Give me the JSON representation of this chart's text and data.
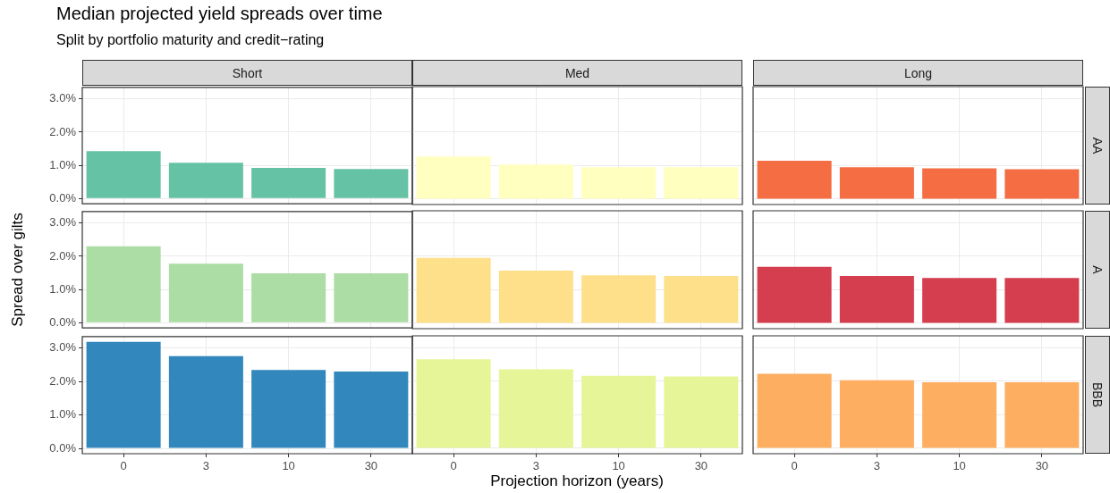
{
  "chart_data": [
    {
      "type": "bar",
      "title": "Median projected yield spreads over time",
      "subtitle": "Split by portfolio maturity and credit−rating",
      "annotations": [
        "Short"
      ],
      "categories": [
        "0",
        "3",
        "10",
        "30"
      ],
      "values": [
        1.43,
        1.08,
        0.92,
        0.89
      ],
      "color": "#66c2a5",
      "ylim": [
        -0.16,
        3.35
      ],
      "yticks": [
        {
          "value": 0,
          "label": "0.0%"
        },
        {
          "value": 1,
          "label": "1.0%"
        },
        {
          "value": 2,
          "label": "2.0%"
        },
        {
          "value": 3,
          "label": "3.0%"
        }
      ],
      "grid": true,
      "tick_labels": "y"
    },
    {
      "type": "bar",
      "annotations": [
        "Med"
      ],
      "categories": [
        "0",
        "3",
        "10",
        "30"
      ],
      "values": [
        1.27,
        1.03,
        0.95,
        0.95
      ],
      "color": "#ffffbf",
      "ylim": [
        -0.16,
        3.35
      ],
      "grid": true,
      "tick_labels": false
    },
    {
      "type": "bar",
      "annotations": [
        "Long",
        "AA"
      ],
      "categories": [
        "0",
        "3",
        "10",
        "30"
      ],
      "values": [
        1.14,
        0.95,
        0.92,
        0.89
      ],
      "color": "#f46d43",
      "ylim": [
        -0.16,
        3.35
      ],
      "grid": true,
      "tick_labels": false
    },
    {
      "type": "bar",
      "ylabel": "Spread over gilts",
      "categories": [
        "0",
        "3",
        "10",
        "30"
      ],
      "values": [
        2.3,
        1.78,
        1.49,
        1.49
      ],
      "color": "#abdda4",
      "ylim": [
        -0.16,
        3.35
      ],
      "yticks": [
        {
          "value": 0,
          "label": "0.0%"
        },
        {
          "value": 1,
          "label": "1.0%"
        },
        {
          "value": 2,
          "label": "2.0%"
        },
        {
          "value": 3,
          "label": "3.0%"
        }
      ],
      "grid": true,
      "tick_labels": "y"
    },
    {
      "type": "bar",
      "categories": [
        "0",
        "3",
        "10",
        "30"
      ],
      "values": [
        1.95,
        1.57,
        1.43,
        1.41
      ],
      "color": "#fee08b",
      "ylim": [
        -0.16,
        3.35
      ],
      "grid": true,
      "tick_labels": false
    },
    {
      "type": "bar",
      "annotations": [
        "A"
      ],
      "categories": [
        "0",
        "3",
        "10",
        "30"
      ],
      "values": [
        1.68,
        1.41,
        1.35,
        1.35
      ],
      "color": "#d53e4f",
      "ylim": [
        -0.16,
        3.35
      ],
      "grid": true,
      "tick_labels": false
    },
    {
      "type": "bar",
      "categories": [
        "0",
        "3",
        "10",
        "30"
      ],
      "values": [
        3.19,
        2.76,
        2.35,
        2.3
      ],
      "color": "#3288bd",
      "ylim": [
        -0.16,
        3.35
      ],
      "yticks": [
        {
          "value": 0,
          "label": "0.0%"
        },
        {
          "value": 1,
          "label": "1.0%"
        },
        {
          "value": 2,
          "label": "2.0%"
        },
        {
          "value": 3,
          "label": "3.0%"
        }
      ],
      "grid": true
    },
    {
      "type": "bar",
      "xlabel": "Projection horizon (years)",
      "categories": [
        "0",
        "3",
        "10",
        "30"
      ],
      "values": [
        2.65,
        2.35,
        2.16,
        2.14
      ],
      "color": "#e6f598",
      "ylim": [
        -0.16,
        3.35
      ],
      "grid": true,
      "tick_labels": "x"
    },
    {
      "type": "bar",
      "annotations": [
        "BBB"
      ],
      "categories": [
        "0",
        "3",
        "10",
        "30"
      ],
      "values": [
        2.22,
        2.03,
        1.97,
        1.97
      ],
      "color": "#fdae61",
      "ylim": [
        -0.16,
        3.35
      ],
      "grid": true,
      "tick_labels": "x"
    }
  ]
}
